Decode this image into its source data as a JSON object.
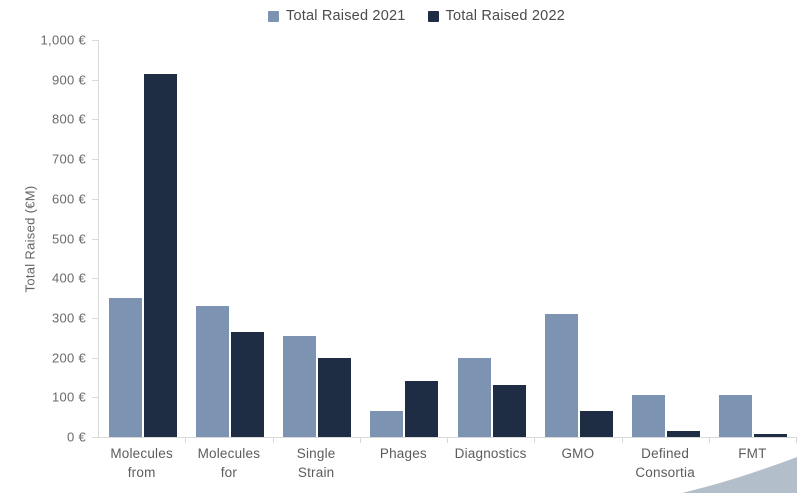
{
  "chart_data": {
    "type": "bar",
    "title": "",
    "xlabel": "",
    "ylabel": "Total Raised (€M)",
    "ylim": [
      0,
      1000
    ],
    "ytick_step": 100,
    "ytick_labels": [
      "0 €",
      "100 €",
      "200 €",
      "300 €",
      "400 €",
      "500 €",
      "600 €",
      "700 €",
      "800 €",
      "900 €",
      "1,000 €"
    ],
    "grid": false,
    "legend_position": "top-center",
    "categories": [
      "Molecules from",
      "Molecules for",
      "Single Strain",
      "Phages",
      "Diagnostics",
      "GMO",
      "Defined Consortia",
      "FMT"
    ],
    "category_label_lines": [
      [
        "Molecules",
        "from"
      ],
      [
        "Molecules",
        "for"
      ],
      [
        "Single",
        "Strain"
      ],
      [
        "Phages"
      ],
      [
        "Diagnostics"
      ],
      [
        "GMO"
      ],
      [
        "Defined",
        "Consortia"
      ],
      [
        "FMT"
      ]
    ],
    "series": [
      {
        "name": "Total Raised 2021",
        "color": "#7C94B2",
        "values": [
          350,
          330,
          255,
          65,
          200,
          310,
          107,
          105
        ]
      },
      {
        "name": "Total Raised 2022",
        "color": "#1E2C44",
        "values": [
          915,
          265,
          198,
          140,
          130,
          66,
          15,
          8
        ]
      }
    ]
  },
  "colors": {
    "axis": "#D9D9D9",
    "tick_text": "#6A6A6A",
    "label_text": "#5C5C5C",
    "legend_text": "#4B4B4B",
    "background": "#FFFFFF",
    "corner_wedge": "#B2BFCB"
  }
}
